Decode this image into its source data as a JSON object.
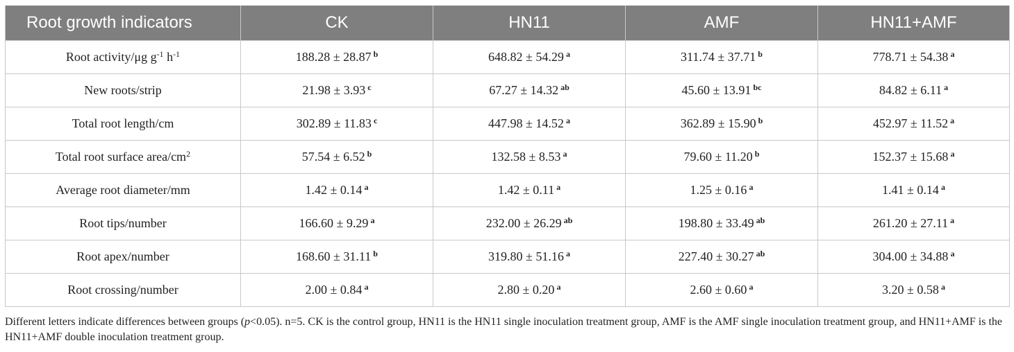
{
  "table": {
    "headers": [
      "Root growth indicators",
      "CK",
      "HN11",
      "AMF",
      "HN11+AMF"
    ],
    "rows": [
      {
        "label": {
          "text": "Root activity/μg g",
          "sup1": "-1",
          "mid": " h",
          "sup2": "-1"
        },
        "cells": [
          {
            "value": "188.28 ± 28.87",
            "letter": "b"
          },
          {
            "value": "648.82 ± 54.29",
            "letter": "a"
          },
          {
            "value": "311.74 ± 37.71",
            "letter": "b"
          },
          {
            "value": "778.71 ± 54.38",
            "letter": "a"
          }
        ]
      },
      {
        "label": {
          "text": "New roots/strip"
        },
        "cells": [
          {
            "value": "21.98 ± 3.93",
            "letter": "c"
          },
          {
            "value": "67.27 ± 14.32",
            "letter": "ab"
          },
          {
            "value": "45.60 ± 13.91",
            "letter": "bc"
          },
          {
            "value": "84.82 ± 6.11",
            "letter": "a"
          }
        ]
      },
      {
        "label": {
          "text": "Total root length/cm"
        },
        "cells": [
          {
            "value": "302.89 ± 11.83",
            "letter": "c"
          },
          {
            "value": "447.98 ± 14.52",
            "letter": "a"
          },
          {
            "value": "362.89 ± 15.90",
            "letter": "b"
          },
          {
            "value": "452.97 ± 11.52",
            "letter": "a"
          }
        ]
      },
      {
        "label": {
          "text": "Total root surface area/cm",
          "sup1": "2"
        },
        "cells": [
          {
            "value": "57.54 ± 6.52",
            "letter": "b"
          },
          {
            "value": "132.58 ± 8.53",
            "letter": "a"
          },
          {
            "value": "79.60 ± 11.20",
            "letter": "b"
          },
          {
            "value": "152.37 ± 15.68",
            "letter": "a"
          }
        ]
      },
      {
        "label": {
          "text": "Average root diameter/mm"
        },
        "cells": [
          {
            "value": "1.42 ± 0.14",
            "letter": "a"
          },
          {
            "value": "1.42 ± 0.11",
            "letter": "a"
          },
          {
            "value": "1.25 ± 0.16",
            "letter": "a"
          },
          {
            "value": "1.41 ± 0.14",
            "letter": "a"
          }
        ]
      },
      {
        "label": {
          "text": "Root tips/number"
        },
        "cells": [
          {
            "value": "166.60 ± 9.29",
            "letter": "a"
          },
          {
            "value": "232.00 ± 26.29",
            "letter": "ab"
          },
          {
            "value": "198.80 ± 33.49",
            "letter": "ab"
          },
          {
            "value": "261.20 ± 27.11",
            "letter": "a"
          }
        ]
      },
      {
        "label": {
          "text": "Root apex/number"
        },
        "cells": [
          {
            "value": "168.60 ± 31.11",
            "letter": "b"
          },
          {
            "value": "319.80 ± 51.16",
            "letter": "a"
          },
          {
            "value": "227.40 ± 30.27",
            "letter": "ab"
          },
          {
            "value": "304.00 ± 34.88",
            "letter": "a"
          }
        ]
      },
      {
        "label": {
          "text": "Root crossing/number"
        },
        "cells": [
          {
            "value": "2.00 ± 0.84",
            "letter": "a"
          },
          {
            "value": "2.80 ± 0.20",
            "letter": "a"
          },
          {
            "value": "2.60 ± 0.60",
            "letter": "a"
          },
          {
            "value": "3.20 ± 0.58",
            "letter": "a"
          }
        ]
      }
    ]
  },
  "footnote": {
    "before_italic": "Different letters indicate differences between groups (",
    "italic": "p",
    "after_italic": "<0.05). n=5. CK is the control group, HN11 is the HN11 single inoculation treatment group, AMF is the AMF single inoculation treatment group, and HN11+AMF is the HN11+AMF double inoculation treatment group."
  }
}
